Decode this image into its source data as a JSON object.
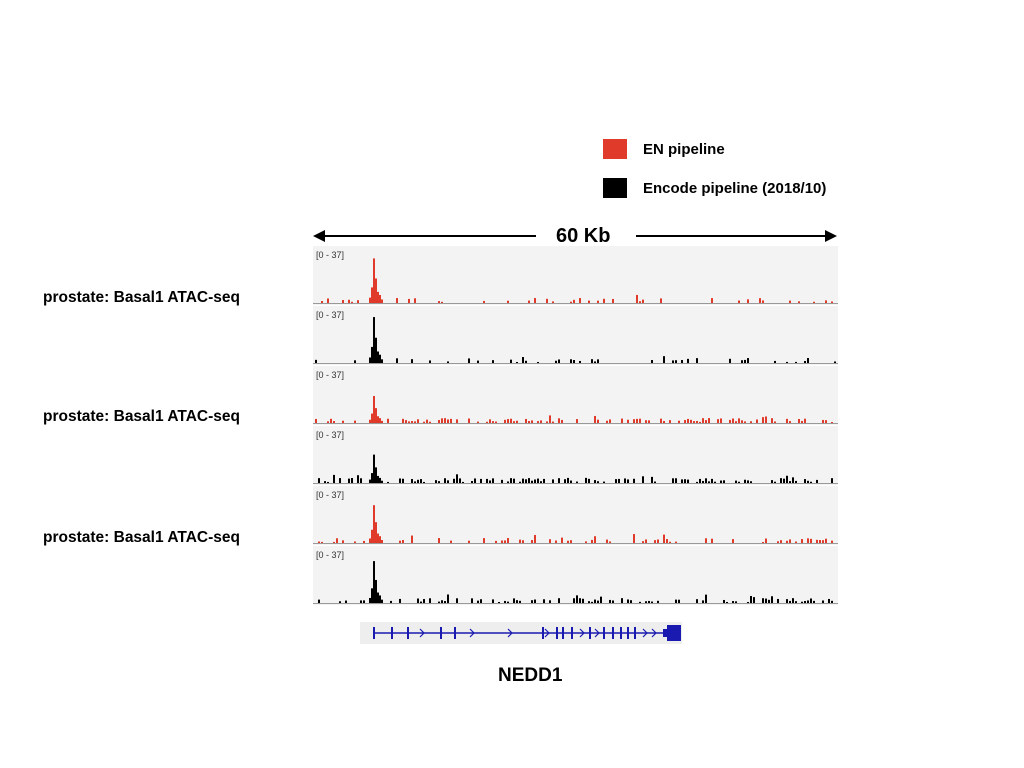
{
  "legend": [
    {
      "label": "EN pipeline",
      "color": "#e03a2a"
    },
    {
      "label": "Encode pipeline (2018/10)",
      "color": "#000000"
    }
  ],
  "scale_label": "60 Kb",
  "row_labels": [
    "prostate: Basal1 ATAC-seq",
    "prostate: Basal1 ATAC-seq",
    "prostate: Basal1 ATAC-seq"
  ],
  "tracks": [
    {
      "range": "[0 - 37]",
      "color": "#e03a2a",
      "pipeline": "EN pipeline",
      "peak": 33,
      "noise": 0.18
    },
    {
      "range": "[0 - 37]",
      "color": "#000000",
      "pipeline": "Encode pipeline (2018/10)",
      "peak": 34,
      "noise": 0.22
    },
    {
      "range": "[0 - 37]",
      "color": "#e03a2a",
      "pipeline": "EN pipeline",
      "peak": 20,
      "noise": 0.55
    },
    {
      "range": "[0 - 37]",
      "color": "#000000",
      "pipeline": "Encode pipeline (2018/10)",
      "peak": 21,
      "noise": 0.6
    },
    {
      "range": "[0 - 37]",
      "color": "#e03a2a",
      "pipeline": "EN pipeline",
      "peak": 28,
      "noise": 0.35
    },
    {
      "range": "[0 - 37]",
      "color": "#000000",
      "pipeline": "Encode pipeline (2018/10)",
      "peak": 31,
      "noise": 0.45
    }
  ],
  "gene": {
    "name": "NEDD1",
    "color": "#1a1ab0"
  }
}
